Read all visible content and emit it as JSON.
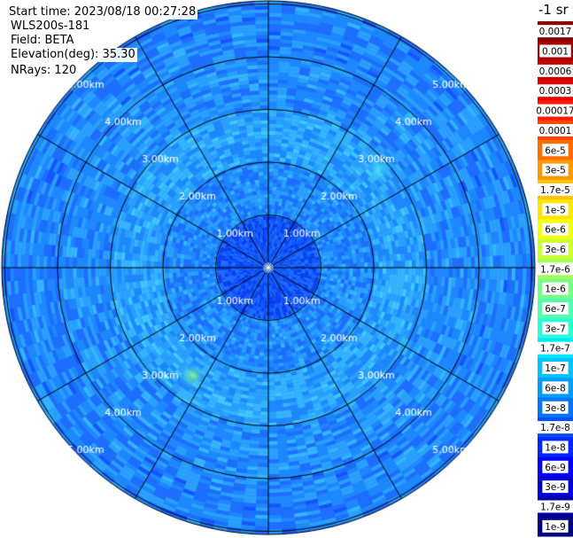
{
  "info": {
    "start_time": "Start time: 2023/08/18 00:27:28",
    "instrument": "WLS200s-181",
    "field": "Field: BETA",
    "elevation": "Elevation(deg): 35.30",
    "nrays": "NRays: 120"
  },
  "colorbar": {
    "title": "-1 sr",
    "labels": [
      "0.0017",
      "0.001",
      "0.0006",
      "0.0003",
      "0.00017",
      "0.0001",
      "6e-5",
      "3e-5",
      "1.7e-5",
      "1e-5",
      "6e-6",
      "3e-6",
      "1.7e-6",
      "1e-6",
      "6e-7",
      "3e-7",
      "1.7e-7",
      "1e-7",
      "6e-8",
      "3e-8",
      "1.7e-8",
      "1e-8",
      "6e-9",
      "3e-9",
      "1.7e-9",
      "1e-9"
    ],
    "colors": [
      "#8b0000",
      "#a50000",
      "#c80000",
      "#e60000",
      "#ff1a00",
      "#ff4400",
      "#ff6e00",
      "#ff9900",
      "#ffc300",
      "#ffe600",
      "#f5ff0a",
      "#ccff33",
      "#a3ff5c",
      "#7aff85",
      "#52ffad",
      "#29ffd6",
      "#00eaff",
      "#00c3ff",
      "#009cff",
      "#0075ff",
      "#004eff",
      "#0027ff",
      "#0000ff",
      "#0000d0",
      "#0000a8",
      "#000080"
    ]
  },
  "chart_data": {
    "type": "heatmap",
    "projection": "polar-ppi",
    "range_unit": "km",
    "max_range_km": 5.7,
    "ring_labels": [
      "1.00km",
      "2.00km",
      "3.00km",
      "4.00km",
      "5.00km"
    ],
    "rings_km": [
      1,
      2,
      3,
      4,
      5
    ],
    "n_rays": 120,
    "radial_lines_deg": [
      0,
      30,
      60,
      90,
      120,
      150,
      180,
      210,
      240,
      270,
      300,
      330
    ],
    "dominant_value_range": [
      "6e-9",
      "1.7e-7"
    ],
    "near_field_value": "1e-8",
    "mid_field_value": "1e-7",
    "hotspots": [
      {
        "azimuth_deg": 215,
        "range_km": 2.5,
        "value": "3e-6"
      },
      {
        "azimuth_deg": 48,
        "range_km": 2.8,
        "value": "1.7e-7"
      }
    ]
  }
}
